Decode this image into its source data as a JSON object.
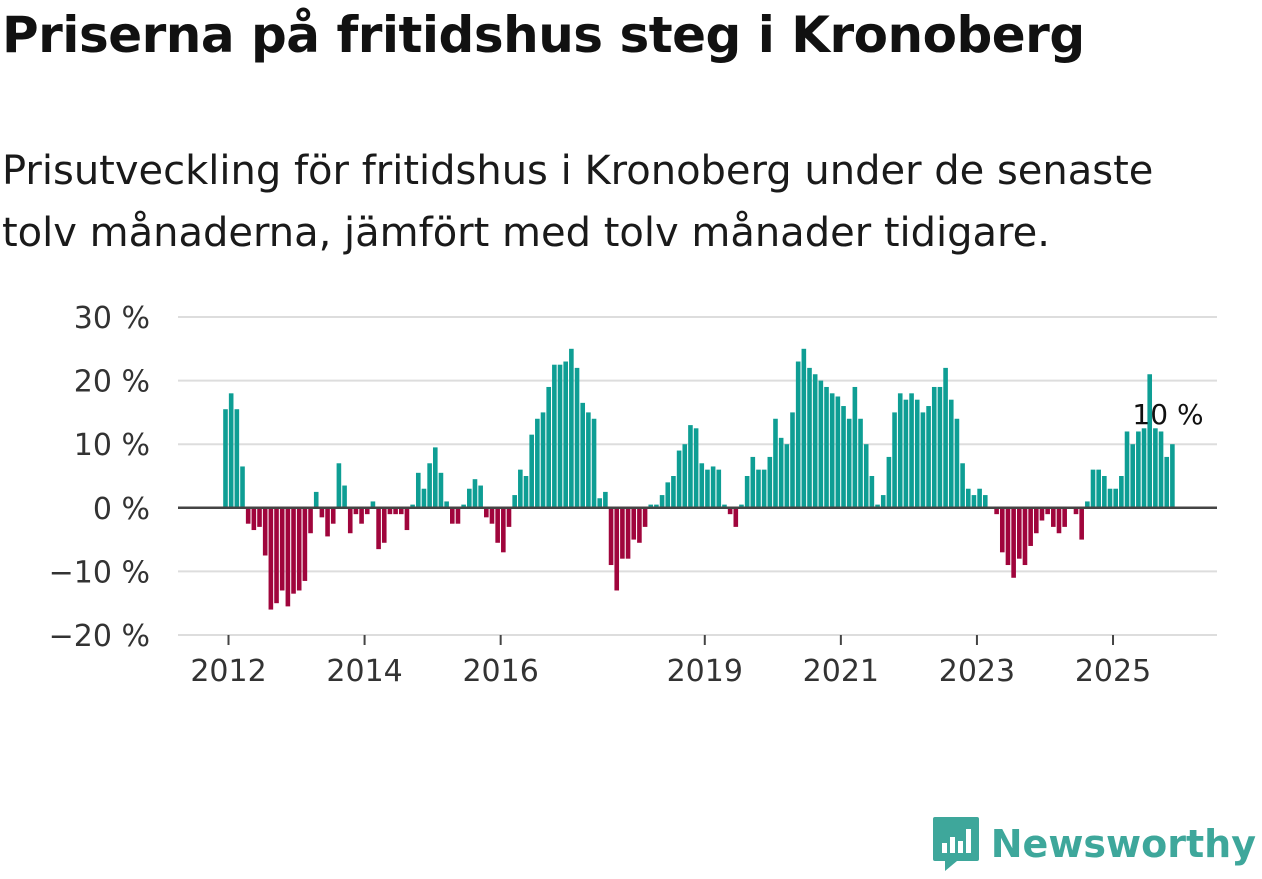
{
  "title": "Priserna på fritidshus steg i Kronoberg",
  "subtitle": {
    "line1": "Prisutveckling för fritidshus i Kronoberg under de senaste",
    "line2": "tolv månaderna, jämfört med tolv månader tidigare."
  },
  "brand": {
    "name": "Newsworthy",
    "icon": "newsworthy-logo-icon"
  },
  "colors": {
    "positive": "#0e9e94",
    "negative": "#a0053c",
    "zero_line": "#444444",
    "grid": "#dddddd"
  },
  "chart_data": {
    "type": "bar",
    "title": "Priserna på fritidshus steg i Kronoberg",
    "xlabel": "",
    "ylabel": "",
    "ylim": [
      -20,
      30
    ],
    "yticks": [
      30,
      20,
      10,
      0,
      -10,
      -20
    ],
    "ytick_labels": [
      "30 %",
      "20 %",
      "10 %",
      "0 %",
      "−10 %",
      "−20 %"
    ],
    "xticks": [
      {
        "label": "2012",
        "month_index": 0
      },
      {
        "label": "2014",
        "month_index": 24
      },
      {
        "label": "2016",
        "month_index": 48
      },
      {
        "label": "2019",
        "month_index": 84
      },
      {
        "label": "2021",
        "month_index": 108
      },
      {
        "label": "2023",
        "month_index": 132
      },
      {
        "label": "2025",
        "month_index": 156
      }
    ],
    "start": "2011-12",
    "annotation": {
      "text": "10 %",
      "value": 10
    },
    "series": [
      {
        "name": "Prisutveckling",
        "values": [
          15.5,
          18,
          15.5,
          6.5,
          -2.5,
          -3.5,
          -3,
          -7.5,
          -16,
          -15,
          -13,
          -15.5,
          -13.5,
          -13,
          -11.5,
          -4,
          2.5,
          -1.5,
          -4.5,
          -2.5,
          7,
          3.5,
          -4,
          -1,
          -2.5,
          -1,
          1,
          -6.5,
          -5.5,
          -1,
          -1,
          -1,
          -3.5,
          0.5,
          5.5,
          3,
          7,
          9.5,
          5.5,
          1,
          -2.5,
          -2.5,
          0.5,
          3,
          4.5,
          3.5,
          -1.5,
          -2.5,
          -5.5,
          -7,
          -3,
          2,
          6,
          5,
          11.5,
          14,
          15,
          19,
          22.5,
          22.5,
          23,
          25,
          22,
          16.5,
          15,
          14,
          1.5,
          2.5,
          -9,
          -13,
          -8,
          -8,
          -5,
          -5.5,
          -3,
          0.5,
          0.5,
          2,
          4,
          5,
          9,
          10,
          13,
          12.5,
          7,
          6,
          6.5,
          6,
          0.5,
          -1,
          -3,
          0.5,
          5,
          8,
          6,
          6,
          8,
          14,
          11,
          10,
          15,
          23,
          25,
          22,
          21,
          20,
          19,
          18,
          17.5,
          16,
          14,
          19,
          14,
          10,
          5,
          0.5,
          2,
          8,
          15,
          18,
          17,
          18,
          17,
          15,
          16,
          19,
          19,
          22,
          17,
          14,
          7,
          3,
          2,
          3,
          2,
          0,
          -1,
          -7,
          -9,
          -11,
          -8,
          -9,
          -6,
          -4,
          -2,
          -1,
          -3,
          -4,
          -3,
          0,
          -1,
          -5,
          1,
          6,
          6,
          5,
          3,
          3,
          5,
          12,
          10,
          12,
          12.5,
          21,
          12.5,
          12,
          8,
          10
        ]
      }
    ]
  }
}
